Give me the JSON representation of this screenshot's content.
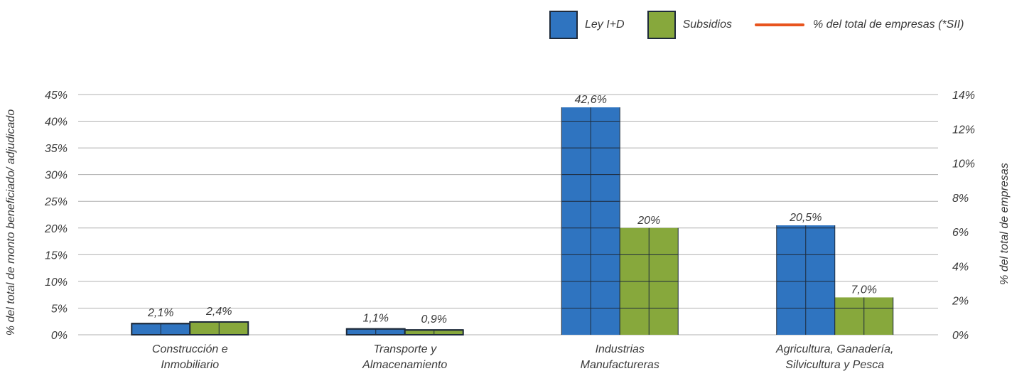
{
  "chart_data": {
    "type": "bar",
    "categories": [
      "Construcción e|Inmobiliario",
      "Transporte y|Almacenamiento",
      "Industrias|Manufactureras",
      "Agricultura, Ganadería,|Silvicultura y Pesca"
    ],
    "series": [
      {
        "name": "Ley I+D",
        "values": [
          2.1,
          1.1,
          42.6,
          20.5
        ],
        "labels": [
          "2,1%",
          "1,1%",
          "42,6%",
          "20,5%"
        ],
        "color": "#2f74c0"
      },
      {
        "name": "Subsidios",
        "values": [
          2.4,
          0.9,
          20,
          7.0
        ],
        "labels": [
          "2,4%",
          "0,9%",
          "20%",
          "7,0%"
        ],
        "color": "#87a83c"
      }
    ],
    "line_series": {
      "name": "% del total de empresas (*SII)",
      "color": "#e8541e"
    },
    "ylabel": "% del total de monto beneficiado/ adjudicado",
    "y2label": "% del total de empresas",
    "ylim": [
      0,
      45
    ],
    "y2lim": [
      0,
      14
    ],
    "yticks": [
      "0%",
      "5%",
      "10%",
      "15%",
      "20%",
      "25%",
      "30%",
      "35%",
      "40%",
      "45%"
    ],
    "y2ticks": [
      "0%",
      "2%",
      "4%",
      "6%",
      "8%",
      "10%",
      "12%",
      "14%"
    ],
    "grid": true,
    "legend_position": "top-right"
  }
}
